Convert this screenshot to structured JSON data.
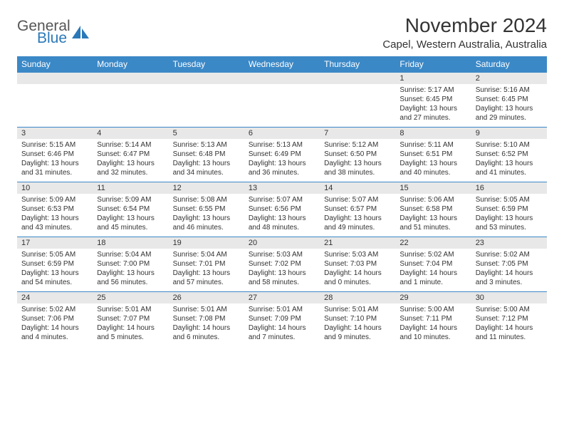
{
  "logo": {
    "word1": "General",
    "word2": "Blue",
    "icon_color": "#2b78b8",
    "text_gray": "#555555"
  },
  "title": "November 2024",
  "location": "Capel, Western Australia, Australia",
  "colors": {
    "header_bg": "#3b88c7",
    "header_text": "#ffffff",
    "daynum_bg": "#e8e8e8",
    "body_text": "#333333",
    "row_border": "#3b88c7"
  },
  "fonts": {
    "title_pt": 28,
    "location_pt": 15,
    "dayhead_pt": 12,
    "daynum_pt": 11,
    "body_pt": 10
  },
  "day_headers": [
    "Sunday",
    "Monday",
    "Tuesday",
    "Wednesday",
    "Thursday",
    "Friday",
    "Saturday"
  ],
  "weeks": [
    [
      null,
      null,
      null,
      null,
      null,
      {
        "n": "1",
        "sunrise": "5:17 AM",
        "sunset": "6:45 PM",
        "daylight": "13 hours and 27 minutes."
      },
      {
        "n": "2",
        "sunrise": "5:16 AM",
        "sunset": "6:45 PM",
        "daylight": "13 hours and 29 minutes."
      }
    ],
    [
      {
        "n": "3",
        "sunrise": "5:15 AM",
        "sunset": "6:46 PM",
        "daylight": "13 hours and 31 minutes."
      },
      {
        "n": "4",
        "sunrise": "5:14 AM",
        "sunset": "6:47 PM",
        "daylight": "13 hours and 32 minutes."
      },
      {
        "n": "5",
        "sunrise": "5:13 AM",
        "sunset": "6:48 PM",
        "daylight": "13 hours and 34 minutes."
      },
      {
        "n": "6",
        "sunrise": "5:13 AM",
        "sunset": "6:49 PM",
        "daylight": "13 hours and 36 minutes."
      },
      {
        "n": "7",
        "sunrise": "5:12 AM",
        "sunset": "6:50 PM",
        "daylight": "13 hours and 38 minutes."
      },
      {
        "n": "8",
        "sunrise": "5:11 AM",
        "sunset": "6:51 PM",
        "daylight": "13 hours and 40 minutes."
      },
      {
        "n": "9",
        "sunrise": "5:10 AM",
        "sunset": "6:52 PM",
        "daylight": "13 hours and 41 minutes."
      }
    ],
    [
      {
        "n": "10",
        "sunrise": "5:09 AM",
        "sunset": "6:53 PM",
        "daylight": "13 hours and 43 minutes."
      },
      {
        "n": "11",
        "sunrise": "5:09 AM",
        "sunset": "6:54 PM",
        "daylight": "13 hours and 45 minutes."
      },
      {
        "n": "12",
        "sunrise": "5:08 AM",
        "sunset": "6:55 PM",
        "daylight": "13 hours and 46 minutes."
      },
      {
        "n": "13",
        "sunrise": "5:07 AM",
        "sunset": "6:56 PM",
        "daylight": "13 hours and 48 minutes."
      },
      {
        "n": "14",
        "sunrise": "5:07 AM",
        "sunset": "6:57 PM",
        "daylight": "13 hours and 49 minutes."
      },
      {
        "n": "15",
        "sunrise": "5:06 AM",
        "sunset": "6:58 PM",
        "daylight": "13 hours and 51 minutes."
      },
      {
        "n": "16",
        "sunrise": "5:05 AM",
        "sunset": "6:59 PM",
        "daylight": "13 hours and 53 minutes."
      }
    ],
    [
      {
        "n": "17",
        "sunrise": "5:05 AM",
        "sunset": "6:59 PM",
        "daylight": "13 hours and 54 minutes."
      },
      {
        "n": "18",
        "sunrise": "5:04 AM",
        "sunset": "7:00 PM",
        "daylight": "13 hours and 56 minutes."
      },
      {
        "n": "19",
        "sunrise": "5:04 AM",
        "sunset": "7:01 PM",
        "daylight": "13 hours and 57 minutes."
      },
      {
        "n": "20",
        "sunrise": "5:03 AM",
        "sunset": "7:02 PM",
        "daylight": "13 hours and 58 minutes."
      },
      {
        "n": "21",
        "sunrise": "5:03 AM",
        "sunset": "7:03 PM",
        "daylight": "14 hours and 0 minutes."
      },
      {
        "n": "22",
        "sunrise": "5:02 AM",
        "sunset": "7:04 PM",
        "daylight": "14 hours and 1 minute."
      },
      {
        "n": "23",
        "sunrise": "5:02 AM",
        "sunset": "7:05 PM",
        "daylight": "14 hours and 3 minutes."
      }
    ],
    [
      {
        "n": "24",
        "sunrise": "5:02 AM",
        "sunset": "7:06 PM",
        "daylight": "14 hours and 4 minutes."
      },
      {
        "n": "25",
        "sunrise": "5:01 AM",
        "sunset": "7:07 PM",
        "daylight": "14 hours and 5 minutes."
      },
      {
        "n": "26",
        "sunrise": "5:01 AM",
        "sunset": "7:08 PM",
        "daylight": "14 hours and 6 minutes."
      },
      {
        "n": "27",
        "sunrise": "5:01 AM",
        "sunset": "7:09 PM",
        "daylight": "14 hours and 7 minutes."
      },
      {
        "n": "28",
        "sunrise": "5:01 AM",
        "sunset": "7:10 PM",
        "daylight": "14 hours and 9 minutes."
      },
      {
        "n": "29",
        "sunrise": "5:00 AM",
        "sunset": "7:11 PM",
        "daylight": "14 hours and 10 minutes."
      },
      {
        "n": "30",
        "sunrise": "5:00 AM",
        "sunset": "7:12 PM",
        "daylight": "14 hours and 11 minutes."
      }
    ]
  ],
  "labels": {
    "sunrise": "Sunrise:",
    "sunset": "Sunset:",
    "daylight": "Daylight:"
  }
}
